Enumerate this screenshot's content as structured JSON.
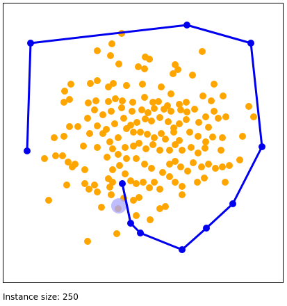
{
  "colors": {
    "points": "#ffa500",
    "hull": "#0000ee",
    "highlight": "#a7a7ff"
  },
  "status": {
    "label": "Instance size: 250"
  }
}
